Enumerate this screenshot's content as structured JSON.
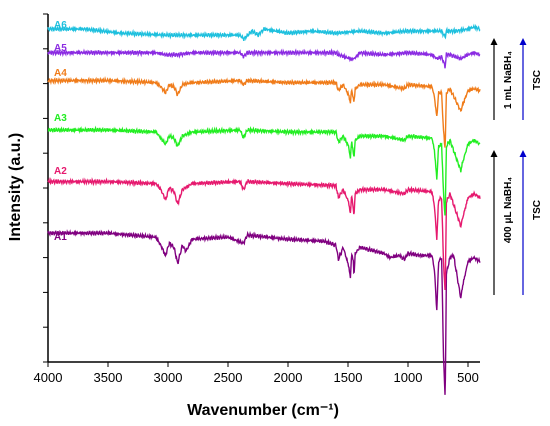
{
  "chart_data": {
    "type": "line",
    "xlabel": "Wavenumber (cm⁻¹)",
    "ylabel": "Intensity (a.u.)",
    "xlim": [
      4000,
      400
    ],
    "x_reversed": true,
    "x_ticks": [
      4000,
      3500,
      3000,
      2500,
      2000,
      1500,
      1000,
      500
    ],
    "y_tick_labels_shown": false,
    "grid": false,
    "legend": "none; series labelled inline above each trace",
    "series": [
      {
        "name": "A1",
        "color": "#800080",
        "offset": 1.0,
        "points": [
          [
            4000,
            0
          ],
          [
            3500,
            0
          ],
          [
            3300,
            -0.05
          ],
          [
            3100,
            -0.1
          ],
          [
            3060,
            -0.3
          ],
          [
            3020,
            -0.55
          ],
          [
            2990,
            -0.25
          ],
          [
            2950,
            -0.35
          ],
          [
            2920,
            -0.75
          ],
          [
            2880,
            -0.3
          ],
          [
            2850,
            -0.45
          ],
          [
            2800,
            -0.15
          ],
          [
            2500,
            -0.1
          ],
          [
            2370,
            -0.25
          ],
          [
            2340,
            -0.05
          ],
          [
            2000,
            -0.15
          ],
          [
            1700,
            -0.2
          ],
          [
            1600,
            -0.3
          ],
          [
            1580,
            -0.65
          ],
          [
            1540,
            -0.35
          ],
          [
            1495,
            -0.8
          ],
          [
            1480,
            -1.1
          ],
          [
            1470,
            -0.5
          ],
          [
            1455,
            -0.7
          ],
          [
            1450,
            -1.1
          ],
          [
            1440,
            -0.5
          ],
          [
            1400,
            -0.35
          ],
          [
            1200,
            -0.5
          ],
          [
            1150,
            -0.6
          ],
          [
            1070,
            -0.55
          ],
          [
            1030,
            -0.65
          ],
          [
            1000,
            -0.5
          ],
          [
            900,
            -0.55
          ],
          [
            800,
            -0.55
          ],
          [
            780,
            -0.9
          ],
          [
            760,
            -1.9
          ],
          [
            745,
            -0.7
          ],
          [
            720,
            -0.6
          ],
          [
            705,
            -2.9
          ],
          [
            690,
            -4.2
          ],
          [
            680,
            -1.0
          ],
          [
            650,
            -0.6
          ],
          [
            620,
            -0.55
          ],
          [
            560,
            -1.6
          ],
          [
            545,
            -1.3
          ],
          [
            500,
            -0.7
          ],
          [
            450,
            -0.6
          ],
          [
            400,
            -0.7
          ]
        ]
      },
      {
        "name": "A2",
        "color": "#e6196e",
        "offset": 2.2,
        "points": [
          [
            4000,
            0
          ],
          [
            3500,
            0
          ],
          [
            3100,
            -0.05
          ],
          [
            3060,
            -0.2
          ],
          [
            3020,
            -0.45
          ],
          [
            2990,
            -0.15
          ],
          [
            2950,
            -0.25
          ],
          [
            2920,
            -0.55
          ],
          [
            2880,
            -0.2
          ],
          [
            2800,
            -0.05
          ],
          [
            2400,
            0
          ],
          [
            2370,
            -0.2
          ],
          [
            2340,
            0
          ],
          [
            2000,
            -0.05
          ],
          [
            1600,
            -0.1
          ],
          [
            1580,
            -0.4
          ],
          [
            1540,
            -0.2
          ],
          [
            1495,
            -0.5
          ],
          [
            1480,
            -0.8
          ],
          [
            1470,
            -0.3
          ],
          [
            1450,
            -0.85
          ],
          [
            1440,
            -0.3
          ],
          [
            1400,
            -0.2
          ],
          [
            1200,
            -0.2
          ],
          [
            1030,
            -0.3
          ],
          [
            1000,
            -0.2
          ],
          [
            800,
            -0.25
          ],
          [
            780,
            -0.6
          ],
          [
            760,
            -1.4
          ],
          [
            745,
            -0.45
          ],
          [
            720,
            -0.4
          ],
          [
            705,
            -1.9
          ],
          [
            690,
            -2.8
          ],
          [
            680,
            -0.5
          ],
          [
            650,
            -0.3
          ],
          [
            560,
            -1.1
          ],
          [
            545,
            -0.9
          ],
          [
            500,
            -0.4
          ],
          [
            450,
            -0.3
          ],
          [
            400,
            -0.4
          ]
        ]
      },
      {
        "name": "A3",
        "color": "#22ee22",
        "offset": 3.4,
        "points": [
          [
            4000,
            0
          ],
          [
            3500,
            0
          ],
          [
            3100,
            -0.05
          ],
          [
            3060,
            -0.2
          ],
          [
            3020,
            -0.35
          ],
          [
            2990,
            -0.15
          ],
          [
            2950,
            -0.2
          ],
          [
            2920,
            -0.4
          ],
          [
            2880,
            -0.15
          ],
          [
            2800,
            -0.05
          ],
          [
            2400,
            0
          ],
          [
            2370,
            -0.2
          ],
          [
            2340,
            0
          ],
          [
            2000,
            -0.05
          ],
          [
            1600,
            -0.05
          ],
          [
            1580,
            -0.3
          ],
          [
            1540,
            -0.15
          ],
          [
            1495,
            -0.4
          ],
          [
            1480,
            -0.7
          ],
          [
            1470,
            -0.25
          ],
          [
            1450,
            -0.7
          ],
          [
            1440,
            -0.25
          ],
          [
            1400,
            -0.15
          ],
          [
            1200,
            -0.15
          ],
          [
            1030,
            -0.25
          ],
          [
            1000,
            -0.15
          ],
          [
            800,
            -0.2
          ],
          [
            780,
            -0.5
          ],
          [
            760,
            -1.2
          ],
          [
            745,
            -0.4
          ],
          [
            720,
            -0.35
          ],
          [
            705,
            -1.5
          ],
          [
            690,
            -2.2
          ],
          [
            680,
            -0.4
          ],
          [
            650,
            -0.25
          ],
          [
            560,
            -1.0
          ],
          [
            545,
            -0.8
          ],
          [
            500,
            -0.35
          ],
          [
            450,
            -0.25
          ],
          [
            400,
            -0.35
          ]
        ]
      },
      {
        "name": "A4",
        "color": "#f07c1a",
        "offset": 4.55,
        "points": [
          [
            4000,
            0
          ],
          [
            3500,
            0
          ],
          [
            3100,
            -0.05
          ],
          [
            3060,
            -0.15
          ],
          [
            3020,
            -0.3
          ],
          [
            2990,
            -0.1
          ],
          [
            2950,
            -0.15
          ],
          [
            2920,
            -0.35
          ],
          [
            2880,
            -0.1
          ],
          [
            2800,
            -0.05
          ],
          [
            2400,
            0
          ],
          [
            2370,
            -0.1
          ],
          [
            2340,
            0
          ],
          [
            2000,
            -0.05
          ],
          [
            1600,
            -0.05
          ],
          [
            1580,
            -0.25
          ],
          [
            1540,
            -0.1
          ],
          [
            1495,
            -0.35
          ],
          [
            1480,
            -0.55
          ],
          [
            1470,
            -0.2
          ],
          [
            1450,
            -0.55
          ],
          [
            1440,
            -0.2
          ],
          [
            1400,
            -0.1
          ],
          [
            1200,
            -0.1
          ],
          [
            1030,
            -0.2
          ],
          [
            1000,
            -0.1
          ],
          [
            800,
            -0.15
          ],
          [
            780,
            -0.4
          ],
          [
            760,
            -0.9
          ],
          [
            745,
            -0.3
          ],
          [
            720,
            -0.3
          ],
          [
            705,
            -1.2
          ],
          [
            690,
            -1.7
          ],
          [
            680,
            -0.3
          ],
          [
            650,
            -0.2
          ],
          [
            560,
            -0.75
          ],
          [
            545,
            -0.6
          ],
          [
            500,
            -0.25
          ],
          [
            450,
            -0.2
          ],
          [
            400,
            -0.25
          ]
        ]
      },
      {
        "name": "A5",
        "color": "#8b2be2",
        "offset": 5.2,
        "points": [
          [
            4000,
            0
          ],
          [
            3500,
            0
          ],
          [
            3100,
            0
          ],
          [
            3020,
            -0.05
          ],
          [
            2920,
            -0.05
          ],
          [
            2800,
            0
          ],
          [
            2400,
            0
          ],
          [
            2370,
            -0.1
          ],
          [
            2340,
            0
          ],
          [
            2000,
            0
          ],
          [
            1600,
            0
          ],
          [
            1580,
            -0.05
          ],
          [
            1480,
            -0.15
          ],
          [
            1450,
            -0.15
          ],
          [
            1400,
            0
          ],
          [
            1200,
            -0.05
          ],
          [
            1000,
            0
          ],
          [
            800,
            -0.05
          ],
          [
            760,
            -0.15
          ],
          [
            720,
            -0.1
          ],
          [
            690,
            -0.35
          ],
          [
            680,
            -0.05
          ],
          [
            650,
            -0.05
          ],
          [
            560,
            -0.15
          ],
          [
            500,
            -0.05
          ],
          [
            450,
            0
          ],
          [
            400,
            -0.05
          ]
        ]
      },
      {
        "name": "A6",
        "color": "#1ec0de",
        "offset": 5.75,
        "points": [
          [
            4000,
            0
          ],
          [
            3700,
            0
          ],
          [
            3400,
            -0.1
          ],
          [
            3000,
            -0.15
          ],
          [
            2700,
            -0.15
          ],
          [
            2400,
            -0.15
          ],
          [
            2370,
            -0.25
          ],
          [
            2300,
            -0.05
          ],
          [
            2250,
            -0.15
          ],
          [
            2200,
            0
          ],
          [
            2100,
            -0.05
          ],
          [
            2000,
            -0.1
          ],
          [
            1800,
            -0.05
          ],
          [
            1600,
            -0.1
          ],
          [
            1400,
            -0.05
          ],
          [
            1200,
            -0.1
          ],
          [
            1000,
            -0.05
          ],
          [
            800,
            -0.05
          ],
          [
            720,
            -0.05
          ],
          [
            690,
            -0.2
          ],
          [
            680,
            -0.05
          ],
          [
            600,
            -0.05
          ],
          [
            500,
            0
          ],
          [
            450,
            0.05
          ],
          [
            400,
            0
          ]
        ]
      }
    ],
    "annotations": {
      "group_top": {
        "label": "1 mL NaBH₄",
        "label2": "TSC",
        "series": [
          "A4",
          "A5",
          "A6"
        ]
      },
      "group_bottom": {
        "label": "400 μL NaBH₄",
        "label2": "TSC",
        "series": [
          "A1",
          "A2",
          "A3"
        ]
      },
      "arrow_colors": [
        "#000000",
        "#0000cc"
      ]
    }
  }
}
